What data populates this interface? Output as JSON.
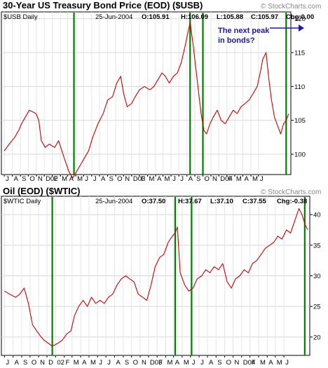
{
  "top": {
    "title": "30-Year US Treasury Bond Price (EOD) ($USB)",
    "watermark": "© StockCharts.com",
    "legend": "$USB Daily",
    "date": "25-Jun-2004",
    "o": "O:105.91",
    "h": "H:106.09",
    "l": "L:105.88",
    "c": "C:105.97",
    "chg": "Chg:0.00",
    "annotation_line1": "The next peak",
    "annotation_line2": "in bonds?"
  },
  "bottom": {
    "title": "Oil (EOD) ($WTIC)",
    "watermark": "© StockCharts.com",
    "legend": "$WTIC Daily",
    "date": "25-Jun-2004",
    "o": "O:37.50",
    "h": "H:37.67",
    "l": "L:37.10",
    "c": "C:37.55",
    "chg": "Chg:-0.38"
  },
  "colors": {
    "line": "#cc0000",
    "vline": "#008000",
    "annotation": "#1a1aa0"
  },
  "chart_data": [
    {
      "type": "line",
      "title": "30-Year US Treasury Bond Price (EOD) ($USB)",
      "series": [
        {
          "name": "$USB Daily",
          "x": [
            "2001-07-01",
            "2001-07-20",
            "2001-08-10",
            "2001-08-25",
            "2001-09-05",
            "2001-09-20",
            "2001-10-05",
            "2001-10-31",
            "2001-11-10",
            "2001-11-20",
            "2001-12-05",
            "2001-12-20",
            "2002-01-10",
            "2002-01-25",
            "2002-02-15",
            "2002-03-05",
            "2002-03-20",
            "2002-04-05",
            "2002-04-20",
            "2002-05-05",
            "2002-05-20",
            "2002-06-05",
            "2002-06-25",
            "2002-07-15",
            "2002-08-01",
            "2002-08-20",
            "2002-09-05",
            "2002-09-20",
            "2002-10-01",
            "2002-10-15",
            "2002-11-01",
            "2002-11-15",
            "2002-12-01",
            "2002-12-20",
            "2003-01-10",
            "2003-01-25",
            "2003-02-10",
            "2003-02-25",
            "2003-03-10",
            "2003-03-25",
            "2003-04-10",
            "2003-04-25",
            "2003-05-10",
            "2003-05-25",
            "2003-06-05",
            "2003-06-13",
            "2003-06-25",
            "2003-07-10",
            "2003-07-25",
            "2003-08-05",
            "2003-08-15",
            "2003-08-28",
            "2003-09-10",
            "2003-09-25",
            "2003-10-10",
            "2003-10-25",
            "2003-11-10",
            "2003-11-25",
            "2003-12-10",
            "2003-12-25",
            "2004-01-10",
            "2004-01-25",
            "2004-02-10",
            "2004-02-25",
            "2004-03-10",
            "2004-03-17",
            "2004-03-30",
            "2004-04-10",
            "2004-04-20",
            "2004-05-01",
            "2004-05-15",
            "2004-05-25",
            "2004-06-05",
            "2004-06-15",
            "2004-06-25"
          ],
          "y": [
            100.5,
            101.5,
            102.5,
            103.5,
            104.5,
            105.5,
            106.5,
            106.0,
            105.0,
            102.0,
            101.0,
            101.5,
            101.0,
            102.0,
            99.5,
            97.5,
            96.5,
            97.5,
            98.5,
            99.5,
            100.5,
            102.5,
            104.5,
            106.0,
            108.0,
            108.5,
            110.5,
            111.5,
            109.0,
            107.0,
            107.5,
            108.5,
            109.5,
            110.0,
            109.5,
            110.0,
            111.0,
            112.0,
            111.5,
            110.5,
            111.5,
            112.0,
            113.5,
            116.0,
            118.0,
            119.5,
            116.0,
            111.0,
            106.0,
            103.5,
            103.0,
            104.5,
            105.5,
            106.5,
            105.0,
            104.5,
            105.5,
            106.5,
            106.0,
            107.0,
            107.5,
            108.0,
            109.0,
            110.0,
            112.5,
            114.0,
            115.0,
            111.0,
            108.0,
            105.5,
            104.0,
            103.0,
            104.5,
            105.0,
            105.97
          ]
        }
      ],
      "xticks": [
        "J",
        "A",
        "S",
        "O",
        "N",
        "D02",
        "F",
        "M",
        "A",
        "M",
        "J",
        "J",
        "A",
        "S",
        "O",
        "N",
        "D03",
        "F",
        "M",
        "A",
        "M",
        "J",
        "J",
        "A",
        "S",
        "O",
        "N",
        "D04",
        "F",
        "M",
        "A",
        "M",
        "J"
      ],
      "yticks": [
        100,
        105,
        110,
        115,
        120
      ],
      "ylim": [
        97,
        121
      ]
    },
    {
      "type": "line",
      "title": "Oil (EOD) ($WTIC)",
      "series": [
        {
          "name": "$WTIC Daily",
          "x": [
            "2001-07-01",
            "2001-07-20",
            "2001-08-10",
            "2001-08-25",
            "2001-09-10",
            "2001-09-25",
            "2001-10-10",
            "2001-10-25",
            "2001-11-10",
            "2001-11-20",
            "2001-12-05",
            "2001-12-20",
            "2002-01-10",
            "2002-01-25",
            "2002-02-10",
            "2002-02-25",
            "2002-03-10",
            "2002-03-25",
            "2002-04-10",
            "2002-04-25",
            "2002-05-10",
            "2002-05-25",
            "2002-06-10",
            "2002-06-25",
            "2002-07-10",
            "2002-07-25",
            "2002-08-10",
            "2002-08-25",
            "2002-09-10",
            "2002-09-25",
            "2002-10-10",
            "2002-10-25",
            "2002-11-10",
            "2002-11-25",
            "2002-12-10",
            "2002-12-25",
            "2003-01-10",
            "2003-01-25",
            "2003-02-10",
            "2003-02-25",
            "2003-03-07",
            "2003-03-15",
            "2003-03-25",
            "2003-04-10",
            "2003-04-25",
            "2003-05-10",
            "2003-05-25",
            "2003-06-10",
            "2003-06-25",
            "2003-07-10",
            "2003-07-25",
            "2003-08-10",
            "2003-08-25",
            "2003-09-10",
            "2003-09-25",
            "2003-10-10",
            "2003-10-25",
            "2003-11-10",
            "2003-11-25",
            "2003-12-10",
            "2003-12-25",
            "2004-01-10",
            "2004-01-25",
            "2004-02-10",
            "2004-02-25",
            "2004-03-10",
            "2004-03-25",
            "2004-04-10",
            "2004-04-25",
            "2004-05-10",
            "2004-05-25",
            "2004-06-05",
            "2004-06-15",
            "2004-06-25"
          ],
          "y": [
            27.5,
            27.0,
            26.5,
            27.0,
            28.0,
            25.5,
            22.0,
            21.0,
            20.0,
            19.5,
            19.0,
            18.5,
            19.0,
            19.5,
            20.5,
            21.0,
            23.5,
            25.0,
            26.0,
            25.0,
            26.5,
            25.5,
            26.0,
            25.5,
            26.5,
            27.0,
            28.5,
            29.5,
            30.0,
            29.5,
            29.0,
            27.0,
            26.5,
            26.0,
            28.5,
            31.5,
            33.0,
            33.5,
            35.5,
            36.5,
            37.0,
            38.0,
            30.5,
            28.5,
            27.5,
            28.0,
            29.5,
            30.0,
            31.0,
            30.5,
            31.5,
            31.0,
            32.0,
            29.0,
            28.0,
            29.5,
            30.0,
            31.0,
            30.5,
            32.0,
            32.5,
            33.5,
            34.5,
            35.0,
            35.5,
            36.5,
            36.0,
            37.5,
            37.0,
            39.0,
            41.0,
            40.0,
            38.5,
            37.55
          ]
        }
      ],
      "xticks": [
        "J",
        "A",
        "S",
        "O",
        "N",
        "D",
        "02",
        "F",
        "M",
        "A",
        "M",
        "J",
        "J",
        "A",
        "S",
        "O",
        "N",
        "D03",
        "F",
        "M",
        "A",
        "M",
        "J",
        "J",
        "A",
        "S",
        "O",
        "N",
        "D04",
        "F",
        "M",
        "A",
        "M",
        "J"
      ],
      "yticks": [
        20,
        25,
        30,
        35,
        40
      ],
      "ylim": [
        17,
        43
      ]
    }
  ]
}
